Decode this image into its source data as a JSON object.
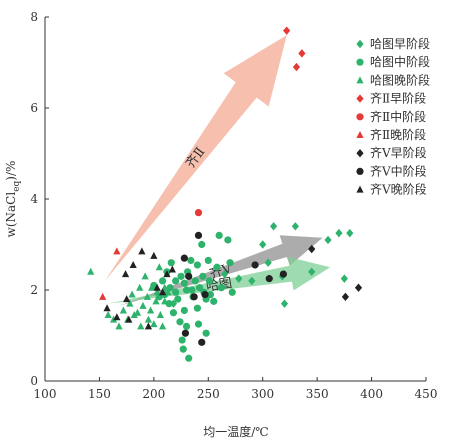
{
  "chart_data": {
    "type": "scatter",
    "xlabel": "均一温度/℃",
    "ylabel": "w(NaCl",
    "ylabel_sub": "eq",
    "ylabel_suffix": ")/%",
    "xlim": [
      100,
      450
    ],
    "ylim": [
      0,
      8
    ],
    "x_ticks": [
      100,
      150,
      200,
      250,
      300,
      350,
      400,
      450
    ],
    "y_ticks": [
      0,
      2,
      4,
      6,
      8
    ],
    "grid": false,
    "legend_position": "top-right",
    "colors": {
      "hatu": "#2db36b",
      "qi2": "#e53935",
      "qi5": "#222222"
    },
    "series": [
      {
        "name": "哈图早阶段",
        "group": "hatu",
        "marker": "diamond",
        "points": [
          [
            265,
            2.35
          ],
          [
            278,
            2.25
          ],
          [
            290,
            2.2
          ],
          [
            300,
            3.0
          ],
          [
            305,
            2.6
          ],
          [
            310,
            3.4
          ],
          [
            318,
            2.3
          ],
          [
            320,
            1.7
          ],
          [
            330,
            3.4
          ],
          [
            345,
            2.4
          ],
          [
            360,
            3.1
          ],
          [
            370,
            3.25
          ],
          [
            375,
            2.25
          ],
          [
            380,
            3.25
          ],
          [
            218,
            1.7
          ]
        ]
      },
      {
        "name": "哈图中阶段",
        "group": "hatu",
        "marker": "circle",
        "points": [
          [
            200,
            2.1
          ],
          [
            205,
            1.85
          ],
          [
            208,
            2.2
          ],
          [
            210,
            1.9
          ],
          [
            212,
            2.4
          ],
          [
            214,
            1.7
          ],
          [
            215,
            2.05
          ],
          [
            216,
            2.6
          ],
          [
            218,
            1.5
          ],
          [
            220,
            1.95
          ],
          [
            220,
            2.2
          ],
          [
            222,
            1.8
          ],
          [
            224,
            1.3
          ],
          [
            225,
            2.3
          ],
          [
            226,
            0.9
          ],
          [
            227,
            0.7
          ],
          [
            228,
            2.15
          ],
          [
            228,
            1.55
          ],
          [
            230,
            2.0
          ],
          [
            230,
            1.2
          ],
          [
            231,
            2.4
          ],
          [
            232,
            0.5
          ],
          [
            234,
            2.65
          ],
          [
            235,
            2.0
          ],
          [
            236,
            1.85
          ],
          [
            238,
            2.2
          ],
          [
            240,
            2.55
          ],
          [
            240,
            1.6
          ],
          [
            241,
            1.25
          ],
          [
            242,
            2.05
          ],
          [
            244,
            3.0
          ],
          [
            245,
            2.3
          ],
          [
            246,
            1.95
          ],
          [
            248,
            1.8
          ],
          [
            248,
            1.05
          ],
          [
            250,
            2.65
          ],
          [
            251,
            2.2
          ],
          [
            252,
            1.9
          ],
          [
            255,
            1.75
          ],
          [
            258,
            2.5
          ],
          [
            260,
            3.2
          ],
          [
            262,
            2.05
          ],
          [
            268,
            3.1
          ],
          [
            270,
            2.6
          ],
          [
            272,
            1.95
          ]
        ]
      },
      {
        "name": "哈图晚阶段",
        "group": "hatu",
        "marker": "triangle",
        "points": [
          [
            142,
            2.4
          ],
          [
            158,
            1.45
          ],
          [
            163,
            1.35
          ],
          [
            168,
            1.2
          ],
          [
            172,
            1.55
          ],
          [
            176,
            1.35
          ],
          [
            178,
            1.7
          ],
          [
            180,
            1.9
          ],
          [
            182,
            1.45
          ],
          [
            185,
            1.5
          ],
          [
            187,
            2.05
          ],
          [
            188,
            1.2
          ],
          [
            190,
            1.65
          ],
          [
            192,
            2.3
          ],
          [
            194,
            1.85
          ],
          [
            195,
            1.35
          ],
          [
            197,
            1.55
          ],
          [
            198,
            2.05
          ],
          [
            200,
            1.25
          ],
          [
            202,
            1.75
          ],
          [
            203,
            1.95
          ],
          [
            205,
            2.5
          ],
          [
            206,
            1.45
          ],
          [
            208,
            1.2
          ],
          [
            210,
            1.75
          ],
          [
            210,
            2.05
          ],
          [
            213,
            1.95
          ]
        ]
      },
      {
        "name": "齐Ⅱ早阶段",
        "group": "qi2",
        "marker": "diamond",
        "points": [
          [
            322,
            7.7
          ],
          [
            331,
            6.9
          ],
          [
            336,
            7.2
          ]
        ]
      },
      {
        "name": "齐Ⅱ中阶段",
        "group": "qi2",
        "marker": "circle",
        "points": [
          [
            241,
            3.7
          ]
        ]
      },
      {
        "name": "齐Ⅱ晚阶段",
        "group": "qi2",
        "marker": "triangle",
        "points": [
          [
            153,
            1.85
          ],
          [
            166,
            2.85
          ]
        ]
      },
      {
        "name": "齐Ⅴ早阶段",
        "group": "qi5",
        "marker": "diamond",
        "points": [
          [
            345,
            2.9
          ],
          [
            376,
            1.85
          ],
          [
            388,
            2.05
          ]
        ]
      },
      {
        "name": "齐Ⅴ中阶段",
        "group": "qi5",
        "marker": "circle",
        "points": [
          [
            228,
            2.7
          ],
          [
            229,
            1.05
          ],
          [
            232,
            2.3
          ],
          [
            237,
            1.85
          ],
          [
            241,
            3.2
          ],
          [
            244,
            0.85
          ],
          [
            247,
            1.9
          ],
          [
            293,
            2.55
          ],
          [
            306,
            2.25
          ],
          [
            319,
            2.35
          ]
        ]
      },
      {
        "name": "齐Ⅴ晚阶段",
        "group": "qi5",
        "marker": "triangle",
        "points": [
          [
            157,
            1.6
          ],
          [
            166,
            1.4
          ],
          [
            174,
            2.35
          ],
          [
            175,
            1.8
          ],
          [
            177,
            1.35
          ],
          [
            181,
            2.55
          ],
          [
            189,
            2.85
          ],
          [
            195,
            1.2
          ],
          [
            200,
            2.75
          ],
          [
            203,
            2.05
          ],
          [
            208,
            1.95
          ],
          [
            212,
            2.35
          ],
          [
            217,
            2.45
          ]
        ]
      }
    ],
    "trend_arrows": [
      {
        "label": "齐Ⅱ",
        "from": [
          155,
          2.2
        ],
        "to": [
          322,
          7.6
        ],
        "color": "#f5b4a0"
      },
      {
        "label": "齐Ⅴ",
        "from": [
          168,
          1.65
        ],
        "to": [
          355,
          3.15
        ],
        "color": "#9e9e9e"
      },
      {
        "label": "哈图",
        "from": [
          158,
          1.7
        ],
        "to": [
          362,
          2.5
        ],
        "color": "#7fcf95"
      }
    ]
  }
}
